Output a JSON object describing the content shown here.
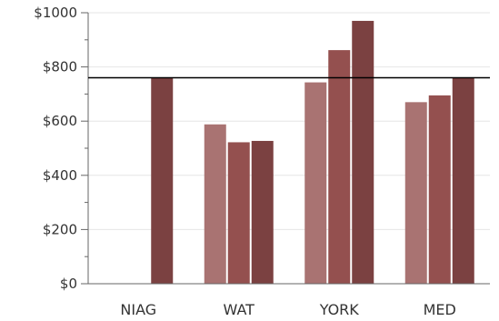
{
  "chart_data": {
    "type": "bar",
    "categories": [
      "NIAG",
      "WAT",
      "YORK",
      "MED"
    ],
    "series": [
      {
        "values": [
          null,
          588,
          743,
          670
        ]
      },
      {
        "values": [
          null,
          522,
          862,
          695
        ]
      },
      {
        "values": [
          760,
          527,
          970,
          760
        ]
      }
    ],
    "y_ticks": [
      "$0",
      "$200",
      "$400",
      "$600",
      "$800",
      "$1000"
    ],
    "ylim": [
      0,
      1000
    ],
    "y_tick_values": [
      0,
      200,
      400,
      600,
      800,
      1000
    ],
    "reference_line": 760,
    "grid": true,
    "legend": "none",
    "colors": [
      "#a97372",
      "#94504f",
      "#7b4141"
    ],
    "reference_line_color": "#000000",
    "grid_color": "#e6e6e6"
  }
}
